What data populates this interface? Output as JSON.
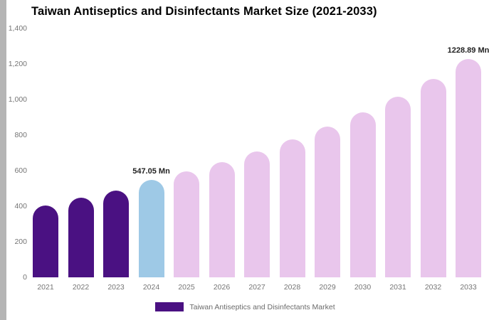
{
  "chart_data": {
    "type": "bar",
    "title": "Taiwan Antiseptics and Disinfectants Market Size (2021-2033)",
    "categories": [
      "2021",
      "2022",
      "2023",
      "2024",
      "2025",
      "2026",
      "2027",
      "2028",
      "2029",
      "2030",
      "2031",
      "2032",
      "2033"
    ],
    "values": [
      405,
      450,
      490,
      547.05,
      595,
      650,
      710,
      775,
      850,
      930,
      1015,
      1115,
      1228.89
    ],
    "bar_colors": [
      "#4a1182",
      "#4a1182",
      "#4a1182",
      "#9ec9e6",
      "#e9c6ec",
      "#e9c6ec",
      "#e9c6ec",
      "#e9c6ec",
      "#e9c6ec",
      "#e9c6ec",
      "#e9c6ec",
      "#e9c6ec",
      "#e9c6ec"
    ],
    "annotations": [
      {
        "index": 3,
        "text": "547.05 Mn"
      },
      {
        "index": 12,
        "text": "1228.89 Mn"
      }
    ],
    "xlabel": "",
    "ylabel": "",
    "ylim": [
      0,
      1400
    ],
    "ytick_values": [
      0,
      200,
      400,
      600,
      800,
      1000,
      1200,
      1400
    ],
    "ytick_labels": [
      "0",
      "200",
      "400",
      "600",
      "800",
      "1,000",
      "1,200",
      "1,400"
    ],
    "grid": false,
    "legend_position": "bottom",
    "legend": [
      {
        "label": "Taiwan Antiseptics and Disinfectants Market",
        "color": "#4a1182"
      }
    ]
  }
}
